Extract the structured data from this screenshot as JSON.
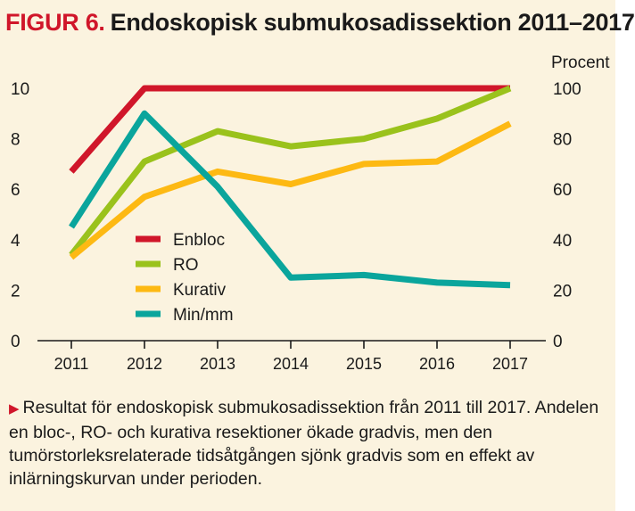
{
  "figure": {
    "label": "FIGUR 6.",
    "title": "Endoskopisk submukosadissektion 2011–2017"
  },
  "caption": {
    "arrow": "▶",
    "text": "Resultat för endoskopisk submukosadissektion från 2011 till 2017. Andelen en bloc-, RO- och kurativa resektioner ökade gradvis, men den tumörstorleksrelaterade tidsåtgången sjönk gradvis som en effekt av inlärningskurvan under perioden."
  },
  "chart_data": {
    "type": "line",
    "categories": [
      "2011",
      "2012",
      "2013",
      "2014",
      "2015",
      "2016",
      "2017"
    ],
    "y_left": {
      "lim": [
        0,
        10
      ],
      "ticks": [
        0,
        2,
        4,
        6,
        8,
        10
      ],
      "tick_labels": [
        "0",
        "2",
        "4",
        "6",
        "8",
        "10"
      ]
    },
    "y_right": {
      "label": "Procent",
      "lim": [
        0,
        100
      ],
      "ticks": [
        0,
        20,
        40,
        60,
        80,
        100
      ],
      "tick_labels": [
        "0",
        "20",
        "40",
        "60",
        "80",
        "100"
      ]
    },
    "series": [
      {
        "name": "Enbloc",
        "axis": "right",
        "color": "#d0162a",
        "values": [
          67,
          100,
          100,
          100,
          100,
          100,
          100
        ]
      },
      {
        "name": "RO",
        "axis": "right",
        "color": "#9ac21c",
        "values": [
          34,
          71,
          83,
          77,
          80,
          88,
          100
        ]
      },
      {
        "name": "Kurativ",
        "axis": "right",
        "color": "#fdb913",
        "values": [
          33,
          57,
          67,
          62,
          70,
          71,
          86
        ]
      },
      {
        "name": "Min/mm",
        "axis": "left",
        "color": "#0aa59c",
        "values": [
          4.5,
          9.0,
          6.1,
          2.5,
          2.6,
          2.3,
          2.2
        ]
      }
    ],
    "legend_position": "center-left",
    "grid": false
  }
}
